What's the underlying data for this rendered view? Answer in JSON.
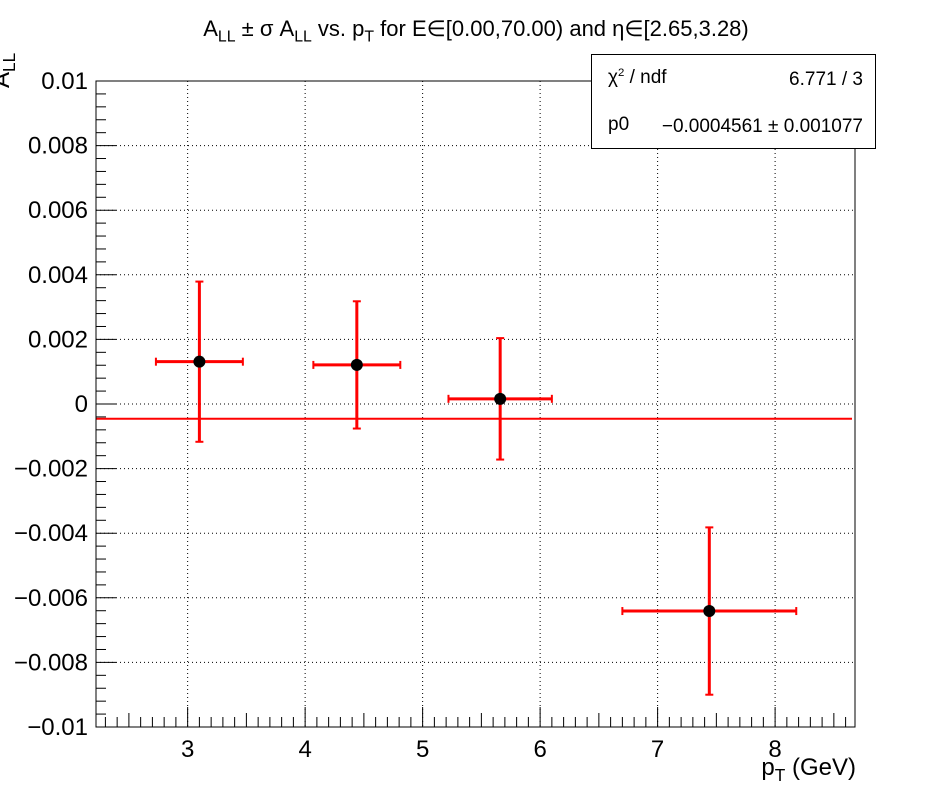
{
  "title": {
    "a": "A",
    "a_sub": "LL",
    "pm_sigma": " ± σ A",
    "b_sub": "LL",
    "vs": " vs. p",
    "vs_sub": "T",
    "rest": " for E∈[0.00,70.00) and η∈[2.65,3.28)"
  },
  "ylabel": {
    "main": "A",
    "sub": "LL"
  },
  "xlabel": {
    "main": "p",
    "sub": "T",
    "unit": " (GeV)"
  },
  "stats": {
    "chi_label": "χ",
    "chi_sup": "2",
    "ndf_label": " / ndf",
    "chi_value": "6.771 / 3",
    "p0_label": "p0",
    "p0_value": "−0.0004561 ± 0.001077"
  },
  "colors": {
    "points": "#000000",
    "errors": "#ff0000",
    "fit": "#ff0000",
    "axis": "#000000",
    "grid": "#000000"
  },
  "chart_data": {
    "type": "scatter",
    "x_ticks": [
      "3",
      "4",
      "5",
      "6",
      "7",
      "8"
    ],
    "y_ticks": [
      "−0.01",
      "−0.008",
      "−0.006",
      "−0.004",
      "−0.002",
      "0",
      "0.002",
      "0.004",
      "0.006",
      "0.008",
      "0.01"
    ],
    "xlim": [
      2.22,
      8.68
    ],
    "ylim": [
      -0.01,
      0.01
    ],
    "grid": true,
    "points": [
      {
        "x": 3.1,
        "y": 0.00131,
        "xerr_low": 0.37,
        "xerr_high": 0.37,
        "yerr": 0.00248
      },
      {
        "x": 4.44,
        "y": 0.00121,
        "xerr_low": 0.37,
        "xerr_high": 0.37,
        "yerr": 0.00197
      },
      {
        "x": 5.66,
        "y": 0.00016,
        "xerr_low": 0.44,
        "xerr_high": 0.44,
        "yerr": 0.00188
      },
      {
        "x": 7.44,
        "y": -0.00641,
        "xerr_low": 0.74,
        "xerr_high": 0.74,
        "yerr": 0.00259
      }
    ],
    "fit": {
      "p0": -0.0004561
    }
  }
}
